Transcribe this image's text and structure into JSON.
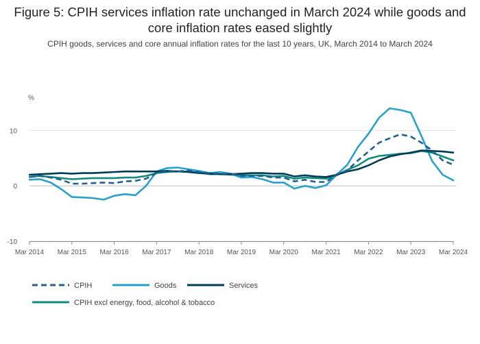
{
  "title": "Figure 5: CPIH services inflation rate unchanged in March 2024 while goods and core inflation rates eased slightly",
  "subtitle": "CPIH goods, services and core annual inflation rates for the last 10 years, UK, March 2014 to March 2024",
  "chart_data": {
    "type": "line",
    "ylabel": "%",
    "ylim": [
      -10,
      15
    ],
    "yticks": [
      -10,
      0,
      10
    ],
    "xlim": [
      2014.0,
      2024.0
    ],
    "xticks": [
      {
        "label": "Mar 2014",
        "value": 2014
      },
      {
        "label": "Mar 2015",
        "value": 2015
      },
      {
        "label": "Mar 2016",
        "value": 2016
      },
      {
        "label": "Mar 2017",
        "value": 2017
      },
      {
        "label": "Mar 2018",
        "value": 2018
      },
      {
        "label": "Mar 2019",
        "value": 2019
      },
      {
        "label": "Mar 2020",
        "value": 2020
      },
      {
        "label": "Mar 2021",
        "value": 2021
      },
      {
        "label": "Mar 2022",
        "value": 2022
      },
      {
        "label": "Mar 2023",
        "value": 2023
      },
      {
        "label": "Mar 2024",
        "value": 2024
      }
    ],
    "x": [
      2014.0,
      2014.25,
      2014.5,
      2014.75,
      2015.0,
      2015.25,
      2015.5,
      2015.75,
      2016.0,
      2016.25,
      2016.5,
      2016.75,
      2017.0,
      2017.25,
      2017.5,
      2017.75,
      2018.0,
      2018.25,
      2018.5,
      2018.75,
      2019.0,
      2019.25,
      2019.5,
      2019.75,
      2020.0,
      2020.25,
      2020.5,
      2020.75,
      2021.0,
      2021.25,
      2021.5,
      2021.75,
      2022.0,
      2022.25,
      2022.5,
      2022.75,
      2023.0,
      2023.25,
      2023.5,
      2023.75,
      2024.0
    ],
    "series": [
      {
        "name": "CPIH",
        "color": "#206095",
        "dash": "dashed",
        "values": [
          1.6,
          1.8,
          1.5,
          1.1,
          0.4,
          0.4,
          0.5,
          0.6,
          0.5,
          0.8,
          0.9,
          1.3,
          2.3,
          2.6,
          2.6,
          2.8,
          2.5,
          2.3,
          2.2,
          2.2,
          1.8,
          1.8,
          1.8,
          1.5,
          1.5,
          0.8,
          1.1,
          0.7,
          0.7,
          2.1,
          2.8,
          4.6,
          6.2,
          7.8,
          8.6,
          9.3,
          8.9,
          7.8,
          6.4,
          4.6,
          3.8
        ]
      },
      {
        "name": "Goods",
        "color": "#27a0cc",
        "dash": "solid",
        "values": [
          1.1,
          1.2,
          0.6,
          -0.6,
          -2.0,
          -2.1,
          -2.2,
          -2.5,
          -1.8,
          -1.5,
          -1.7,
          0.0,
          2.6,
          3.2,
          3.3,
          3.0,
          2.7,
          2.3,
          2.5,
          2.2,
          1.5,
          1.6,
          1.2,
          0.6,
          0.6,
          -0.5,
          0.0,
          -0.4,
          0.1,
          2.0,
          3.8,
          7.0,
          9.4,
          12.3,
          14.0,
          13.7,
          13.2,
          9.0,
          4.5,
          2.0,
          1.0
        ]
      },
      {
        "name": "Services",
        "color": "#003c57",
        "dash": "solid",
        "values": [
          2.0,
          2.1,
          2.2,
          2.3,
          2.2,
          2.3,
          2.3,
          2.4,
          2.5,
          2.6,
          2.6,
          2.6,
          2.6,
          2.7,
          2.6,
          2.5,
          2.3,
          2.2,
          2.1,
          2.1,
          2.2,
          2.3,
          2.3,
          2.2,
          2.2,
          1.7,
          1.9,
          1.7,
          1.6,
          2.0,
          2.6,
          3.0,
          3.7,
          4.6,
          5.3,
          5.7,
          6.0,
          6.4,
          6.3,
          6.2,
          6.0
        ]
      },
      {
        "name": "CPIH excl energy, food, alcohol & tobacco",
        "color": "#118c7b",
        "dash": "solid",
        "values": [
          1.6,
          1.8,
          1.6,
          1.4,
          1.2,
          1.3,
          1.4,
          1.4,
          1.4,
          1.5,
          1.5,
          1.8,
          2.3,
          2.5,
          2.6,
          2.6,
          2.4,
          2.1,
          2.1,
          2.0,
          1.9,
          1.9,
          1.9,
          1.7,
          1.8,
          1.3,
          1.5,
          1.4,
          1.3,
          1.9,
          2.9,
          3.7,
          4.9,
          5.4,
          5.6,
          5.8,
          5.9,
          6.3,
          6.0,
          5.3,
          4.6
        ]
      }
    ]
  }
}
